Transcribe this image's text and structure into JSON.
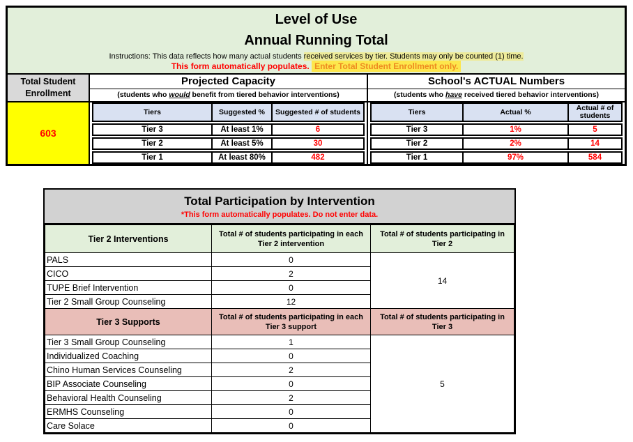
{
  "colors": {
    "header_green": "#e2efda",
    "subheader_lavender": "#d9e1f2",
    "title_gray": "#d2d2d2",
    "enrollment_header_gray": "#d9d9d9",
    "tier3_pink": "#e9beb8",
    "enrollment_yellow": "#ffff00",
    "value_red": "#ff0000",
    "highlight_yellow": "#fde74c",
    "highlight_text_orange": "#ee8b20"
  },
  "level_of_use": {
    "title_line1": "Level of Use",
    "title_line2": "Annual Running Total",
    "instructions_plain": "Instructions: This data reflects how many actual students ",
    "instructions_highlighted": "received services by tier. Students may only be counted (1) time.",
    "note_red": "This form automatically populates.",
    "note_highlighted": "Enter Total Student Enrollment only.",
    "enrollment": {
      "header": "Total Student Enrollment",
      "value": "603"
    },
    "projected": {
      "title": "Projected Capacity",
      "subtitle_pre": "(students who ",
      "subtitle_emphasis": "would",
      "subtitle_post": " benefit from tiered behavior interventions)",
      "columns": [
        "Tiers",
        "Suggested %",
        "Suggested # of students"
      ],
      "rows": [
        {
          "tier": "Tier 3",
          "pct": "At least 1%",
          "count": "6"
        },
        {
          "tier": "Tier 2",
          "pct": "At least 5%",
          "count": "30"
        },
        {
          "tier": "Tier 1",
          "pct": "At least 80%",
          "count": "482"
        }
      ]
    },
    "actual": {
      "title": "School's ACTUAL Numbers",
      "subtitle_pre": "(students who ",
      "subtitle_emphasis": "have",
      "subtitle_post": " received tiered behavior interventions)",
      "columns": [
        "Tiers",
        "Actual %",
        "Actual # of students"
      ],
      "rows": [
        {
          "tier": "Tier 3",
          "pct": "1%",
          "count": "5"
        },
        {
          "tier": "Tier 2",
          "pct": "2%",
          "count": "14"
        },
        {
          "tier": "Tier 1",
          "pct": "97%",
          "count": "584"
        }
      ]
    }
  },
  "participation": {
    "title": "Total Participation by Intervention",
    "note": "*This form automatically populates. Do not enter data.",
    "tier2": {
      "col1": "Tier 2 Interventions",
      "col2": "Total # of students participating in each Tier 2 intervention",
      "col3": "Total # of students participating in Tier 2",
      "rows": [
        {
          "name": "PALS",
          "count": "0"
        },
        {
          "name": "CICO",
          "count": "2"
        },
        {
          "name": "TUPE Brief Intervention",
          "count": "0"
        },
        {
          "name": "Tier 2 Small Group Counseling",
          "count": "12"
        }
      ],
      "total": "14"
    },
    "tier3": {
      "col1": "Tier 3 Supports",
      "col2": "Total # of students participating in each Tier 3 support",
      "col3": "Total # of students participating in Tier 3",
      "rows": [
        {
          "name": "Tier 3 Small Group Counseling",
          "count": "1"
        },
        {
          "name": "Individualized Coaching",
          "count": "0"
        },
        {
          "name": "Chino Human Services Counseling",
          "count": "2"
        },
        {
          "name": "BIP Associate Counseling",
          "count": "0"
        },
        {
          "name": "Behavioral Health Counseling",
          "count": "2"
        },
        {
          "name": "ERMHS Counseling",
          "count": "0"
        },
        {
          "name": "Care Solace",
          "count": "0"
        }
      ],
      "total": "5"
    }
  }
}
